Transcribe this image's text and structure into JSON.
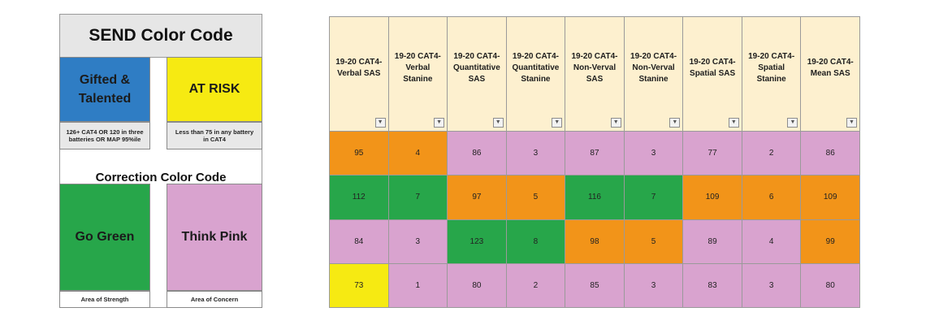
{
  "colors": {
    "blue": "#2f7dc4",
    "yellow": "#f6ea12",
    "green": "#27a64a",
    "pink": "#d9a3cf",
    "orange": "#f29419",
    "header_bg": "#fdf0cf"
  },
  "legend": {
    "title": "SEND Color Code",
    "gifted_label": "Gifted & Talented",
    "at_risk_label": "AT RISK",
    "gifted_caption": "126+ CAT4 OR 120 in three batteries OR MAP 95%ile",
    "at_risk_caption": "Less than 75 in any battery in CAT4",
    "correction_title": "Correction Color Code",
    "go_green_label": "Go Green",
    "think_pink_label": "Think Pink",
    "green_caption": "Area of Strength",
    "pink_caption": "Area of Concern"
  },
  "table": {
    "filter_icon": "dropdown-arrow-icon",
    "headers": [
      "19-20 CAT4- Verbal SAS",
      "19-20 CAT4- Verbal Stanine",
      "19-20 CAT4- Quantitative SAS",
      "19-20 CAT4- Quantitative Stanine",
      "19-20 CAT4- Non-Verval SAS",
      "19-20 CAT4- Non-Verval Stanine",
      "19-20 CAT4- Spatial SAS",
      "19-20 CAT4- Spatial Stanine",
      "19-20 CAT4- Mean SAS"
    ],
    "rows": [
      {
        "values": [
          "95",
          "4",
          "86",
          "3",
          "87",
          "3",
          "77",
          "2",
          "86"
        ],
        "colors": [
          "orange",
          "orange",
          "pink",
          "pink",
          "pink",
          "pink",
          "pink",
          "pink",
          "pink"
        ]
      },
      {
        "values": [
          "112",
          "7",
          "97",
          "5",
          "116",
          "7",
          "109",
          "6",
          "109"
        ],
        "colors": [
          "green",
          "green",
          "orange",
          "orange",
          "green",
          "green",
          "orange",
          "orange",
          "orange"
        ]
      },
      {
        "values": [
          "84",
          "3",
          "123",
          "8",
          "98",
          "5",
          "89",
          "4",
          "99"
        ],
        "colors": [
          "pink",
          "pink",
          "green",
          "green",
          "orange",
          "orange",
          "pink",
          "pink",
          "orange"
        ]
      },
      {
        "values": [
          "73",
          "1",
          "80",
          "2",
          "85",
          "3",
          "83",
          "3",
          "80"
        ],
        "colors": [
          "yellow",
          "pink",
          "pink",
          "pink",
          "pink",
          "pink",
          "pink",
          "pink",
          "pink"
        ]
      }
    ]
  }
}
